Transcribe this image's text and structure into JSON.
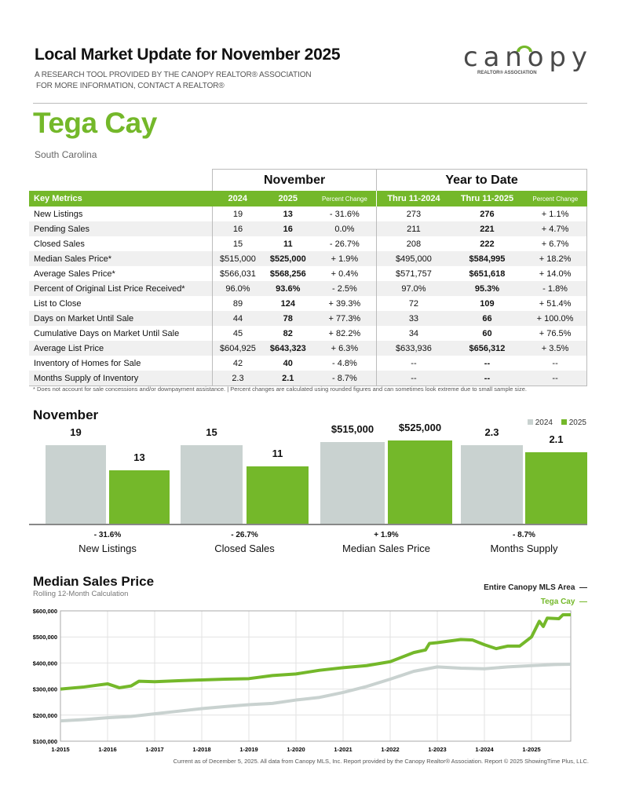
{
  "header": {
    "title": "Local Market Update for November 2025",
    "subtitle1": "A Research Tool Provided by the Canopy REALTOR® Association",
    "subtitle2": "For More Information, Contact a REALTOR®",
    "logo_text": "canopy",
    "logo_subtext": "REALTOR® ASSOCIATION",
    "area": "Tega Cay",
    "state": "South Carolina"
  },
  "colors": {
    "accent": "#74b82a",
    "gray": "#c9d2d0"
  },
  "table": {
    "group_november": "November",
    "group_ytd": "Year to Date",
    "columns": [
      "Key Metrics",
      "2024",
      "2025",
      "Percent Change",
      "Thru 11-2024",
      "Thru 11-2025",
      "Percent Change"
    ],
    "rows": [
      [
        "New Listings",
        "19",
        "13",
        "- 31.6%",
        "273",
        "276",
        "+ 1.1%"
      ],
      [
        "Pending Sales",
        "16",
        "16",
        "0.0%",
        "211",
        "221",
        "+ 4.7%"
      ],
      [
        "Closed Sales",
        "15",
        "11",
        "- 26.7%",
        "208",
        "222",
        "+ 6.7%"
      ],
      [
        "Median Sales Price*",
        "$515,000",
        "$525,000",
        "+ 1.9%",
        "$495,000",
        "$584,995",
        "+ 18.2%"
      ],
      [
        "Average Sales Price*",
        "$566,031",
        "$568,256",
        "+ 0.4%",
        "$571,757",
        "$651,618",
        "+ 14.0%"
      ],
      [
        "Percent of Original List Price Received*",
        "96.0%",
        "93.6%",
        "- 2.5%",
        "97.0%",
        "95.3%",
        "- 1.8%"
      ],
      [
        "List to Close",
        "89",
        "124",
        "+ 39.3%",
        "72",
        "109",
        "+ 51.4%"
      ],
      [
        "Days on Market Until Sale",
        "44",
        "78",
        "+ 77.3%",
        "33",
        "66",
        "+ 100.0%"
      ],
      [
        "Cumulative Days on Market Until Sale",
        "45",
        "82",
        "+ 82.2%",
        "34",
        "60",
        "+ 76.5%"
      ],
      [
        "Average List Price",
        "$604,925",
        "$643,323",
        "+ 6.3%",
        "$633,936",
        "$656,312",
        "+ 3.5%"
      ],
      [
        "Inventory of Homes for Sale",
        "42",
        "40",
        "- 4.8%",
        "--",
        "--",
        "--"
      ],
      [
        "Months Supply of Inventory",
        "2.3",
        "2.1",
        "- 8.7%",
        "--",
        "--",
        "--"
      ]
    ],
    "footnote": "* Does not account for sale concessions and/or downpayment assistance.  |  Percent changes are calculated using rounded figures and can sometimes look extreme due to small sample size."
  },
  "chart_data": [
    {
      "type": "bar",
      "title": "November",
      "legend": [
        "2024",
        "2025"
      ],
      "legend_position": "top-right",
      "categories": [
        "New Listings",
        "Closed Sales",
        "Median Sales Price",
        "Months Supply"
      ],
      "series": [
        {
          "name": "2024",
          "values": [
            19,
            15,
            515000,
            2.3
          ],
          "labels": [
            "19",
            "15",
            "$515,000",
            "2.3"
          ]
        },
        {
          "name": "2025",
          "values": [
            13,
            11,
            525000,
            2.1
          ],
          "labels": [
            "13",
            "11",
            "$525,000",
            "2.1"
          ]
        }
      ],
      "changes": [
        "- 31.6%",
        "- 26.7%",
        "+ 1.9%",
        "- 8.7%"
      ]
    },
    {
      "type": "line",
      "title": "Median Sales Price",
      "subtitle": "Rolling 12-Month Calculation",
      "ylim": [
        100000,
        600000
      ],
      "yticks": [
        "$100,000",
        "$200,000",
        "$300,000",
        "$400,000",
        "$500,000",
        "$600,000"
      ],
      "xticks": [
        "1-2015",
        "1-2016",
        "1-2017",
        "1-2018",
        "1-2019",
        "1-2020",
        "1-2021",
        "1-2022",
        "1-2023",
        "1-2024",
        "1-2025"
      ],
      "grid": true,
      "legend_position": "top-right",
      "series": [
        {
          "name": "Entire Canopy MLS Area",
          "color": "#c9d2d0",
          "points": [
            [
              "2015-01",
              178000
            ],
            [
              "2015-07",
              183000
            ],
            [
              "2016-01",
              190000
            ],
            [
              "2016-07",
              195000
            ],
            [
              "2017-01",
              205000
            ],
            [
              "2017-07",
              215000
            ],
            [
              "2018-01",
              225000
            ],
            [
              "2018-07",
              233000
            ],
            [
              "2019-01",
              240000
            ],
            [
              "2019-07",
              245000
            ],
            [
              "2020-01",
              258000
            ],
            [
              "2020-07",
              268000
            ],
            [
              "2021-01",
              287000
            ],
            [
              "2021-07",
              310000
            ],
            [
              "2022-01",
              338000
            ],
            [
              "2022-07",
              368000
            ],
            [
              "2023-01",
              385000
            ],
            [
              "2023-07",
              380000
            ],
            [
              "2024-01",
              378000
            ],
            [
              "2024-07",
              385000
            ],
            [
              "2025-01",
              390000
            ],
            [
              "2025-07",
              394000
            ],
            [
              "2025-11",
              395000
            ]
          ]
        },
        {
          "name": "Tega Cay",
          "color": "#74b82a",
          "points": [
            [
              "2015-01",
              300000
            ],
            [
              "2015-07",
              308000
            ],
            [
              "2016-01",
              320000
            ],
            [
              "2016-04",
              305000
            ],
            [
              "2016-07",
              312000
            ],
            [
              "2016-09",
              330000
            ],
            [
              "2017-01",
              328000
            ],
            [
              "2017-07",
              332000
            ],
            [
              "2018-01",
              335000
            ],
            [
              "2018-07",
              338000
            ],
            [
              "2019-01",
              340000
            ],
            [
              "2019-07",
              352000
            ],
            [
              "2020-01",
              358000
            ],
            [
              "2020-07",
              372000
            ],
            [
              "2021-01",
              382000
            ],
            [
              "2021-07",
              390000
            ],
            [
              "2022-01",
              405000
            ],
            [
              "2022-07",
              440000
            ],
            [
              "2022-10",
              450000
            ],
            [
              "2022-11",
              475000
            ],
            [
              "2023-01",
              478000
            ],
            [
              "2023-07",
              490000
            ],
            [
              "2023-10",
              488000
            ],
            [
              "2024-01",
              470000
            ],
            [
              "2024-04",
              455000
            ],
            [
              "2024-07",
              465000
            ],
            [
              "2024-10",
              465000
            ],
            [
              "2025-01",
              500000
            ],
            [
              "2025-03",
              560000
            ],
            [
              "2025-04",
              540000
            ],
            [
              "2025-05",
              572000
            ],
            [
              "2025-08",
              570000
            ],
            [
              "2025-09",
              585000
            ],
            [
              "2025-11",
              585000
            ]
          ]
        }
      ]
    }
  ],
  "footer": {
    "credit": "Current as of December 5, 2025. All data from Canopy MLS, Inc. Report provided by the Canopy Realtor® Association. Report © 2025 ShowingTime Plus, LLC."
  }
}
